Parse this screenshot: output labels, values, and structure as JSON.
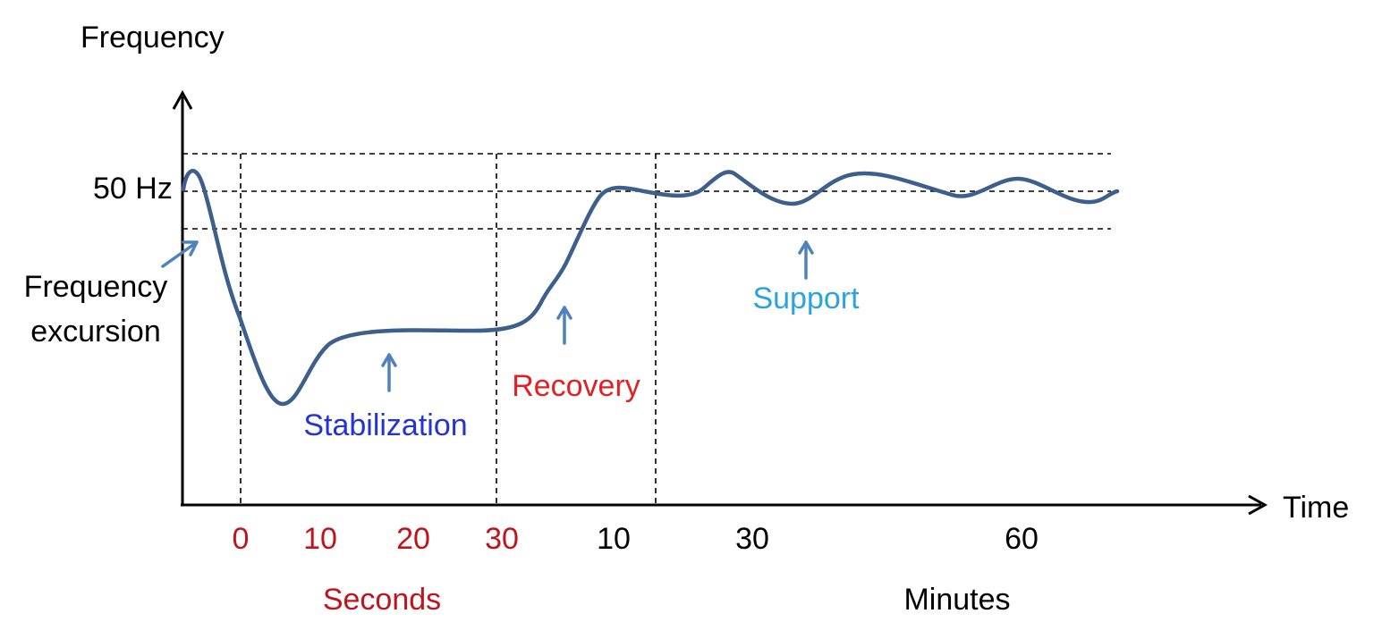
{
  "axes": {
    "y_label": "Frequency",
    "x_label": "Time",
    "nominal_label": "50 Hz"
  },
  "ticks": {
    "seconds": [
      "0",
      "10",
      "20",
      "30"
    ],
    "minutes": [
      "10",
      "30",
      "60"
    ]
  },
  "unit_labels": {
    "seconds": "Seconds",
    "minutes": "Minutes"
  },
  "phases": {
    "excursion": {
      "line1": "Frequency",
      "line2": "excursion"
    },
    "stabilization": "Stabilization",
    "recovery": "Recovery",
    "support": "Support"
  },
  "colors": {
    "curve": "#3d5f8c",
    "pointer": "#4f81bd",
    "seconds": "#c0141c",
    "stabilization": "#2433d6",
    "recovery": "#e41f24",
    "support": "#2aa3df",
    "text": "#000000"
  }
}
